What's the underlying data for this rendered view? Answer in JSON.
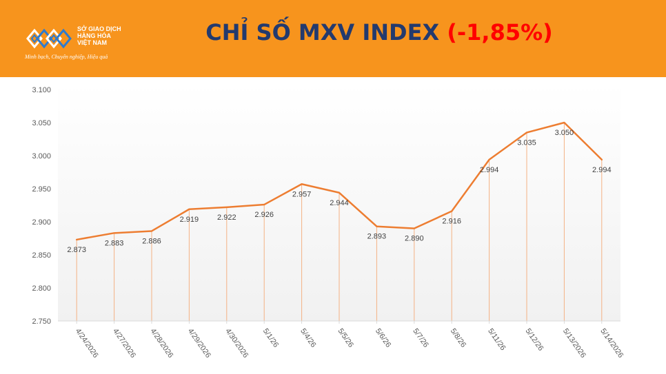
{
  "header": {
    "title_main": "CHỈ SỐ MXV INDEX ",
    "title_change": "(-1,85%)",
    "logo": {
      "name_line1": "SỞ GIAO DỊCH",
      "name_line2": "HÀNG HÓA",
      "name_line3": "VIỆT NAM",
      "slogan": "Minh bạch, Chuyên nghiệp, Hiệu quả"
    }
  },
  "colors": {
    "header_bg": "#f7941d",
    "title_text": "#233a6e",
    "title_change": "#ff0000",
    "line": "#ed7d31",
    "drop_line": "#f4b183"
  },
  "chart_data": {
    "type": "line",
    "title": "",
    "xlabel": "",
    "ylabel": "",
    "ylim": [
      2750,
      3100
    ],
    "y_ticks": [
      "2.750",
      "2.800",
      "2.850",
      "2.900",
      "2.950",
      "3.000",
      "3.050",
      "3.100"
    ],
    "grid": false,
    "categories": [
      "4/24/2026",
      "4/27/2026",
      "4/28/2026",
      "4/29/2026",
      "4/30/2026",
      "5/1/26",
      "5/4/26",
      "5/5/26",
      "5/6/26",
      "5/7/26",
      "5/8/26",
      "5/11/26",
      "5/12/26",
      "5/13/2026",
      "5/14/2026"
    ],
    "values": [
      2873,
      2883,
      2886,
      2919,
      2922,
      2926,
      2957,
      2944,
      2893,
      2890,
      2916,
      2994,
      3035,
      3050,
      2994
    ],
    "value_labels": [
      "2.873",
      "2.883",
      "2.886",
      "2.919",
      "2.922",
      "2.926",
      "2.957",
      "2.944",
      "2.893",
      "2.890",
      "2.916",
      "2.994",
      "3.035",
      "3.050",
      "2.994"
    ]
  }
}
